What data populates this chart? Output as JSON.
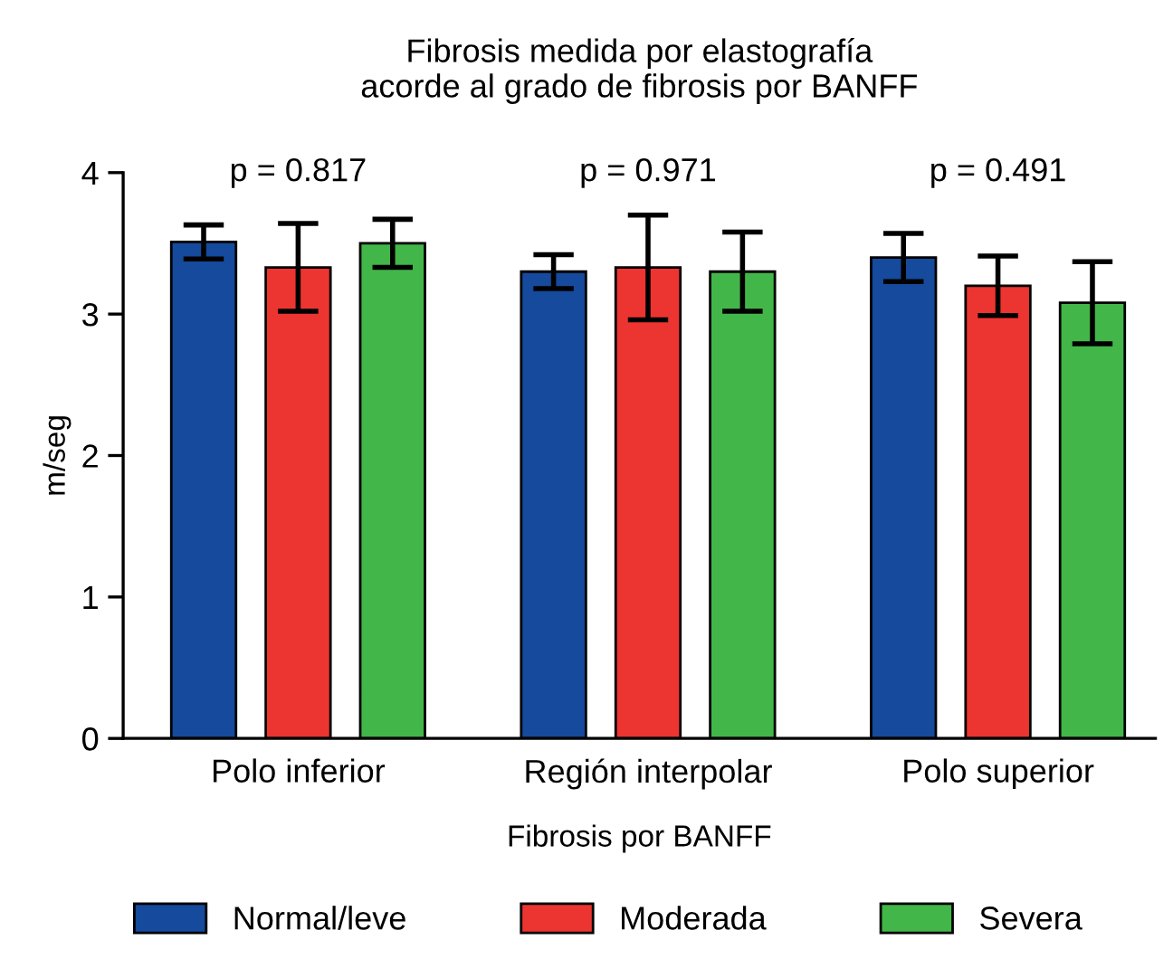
{
  "chart_data": {
    "type": "bar",
    "title": "Fibrosis medida por elastografía\nacorde al grado de fibrosis por BANFF",
    "xlabel": "Fibrosis por BANFF",
    "ylabel": "m/seg",
    "categories": [
      "Polo inferior",
      "Región interpolar",
      "Polo superior"
    ],
    "series": [
      {
        "name": "Normal/leve",
        "color": "#154a9c",
        "values": [
          3.51,
          3.3,
          3.4
        ],
        "errors": [
          0.12,
          0.12,
          0.17
        ]
      },
      {
        "name": "Moderada",
        "color": "#ec3530",
        "values": [
          3.33,
          3.33,
          3.2
        ],
        "errors": [
          0.31,
          0.37,
          0.21
        ]
      },
      {
        "name": "Severa",
        "color": "#43b649",
        "values": [
          3.5,
          3.3,
          3.08
        ],
        "errors": [
          0.17,
          0.28,
          0.29
        ]
      }
    ],
    "annotations": [
      "p = 0.817",
      "p = 0.971",
      "p = 0.491"
    ],
    "ylim": [
      0,
      4
    ],
    "yticks": [
      0,
      1,
      2,
      3,
      4
    ],
    "grid": false,
    "legend": "bottom"
  }
}
